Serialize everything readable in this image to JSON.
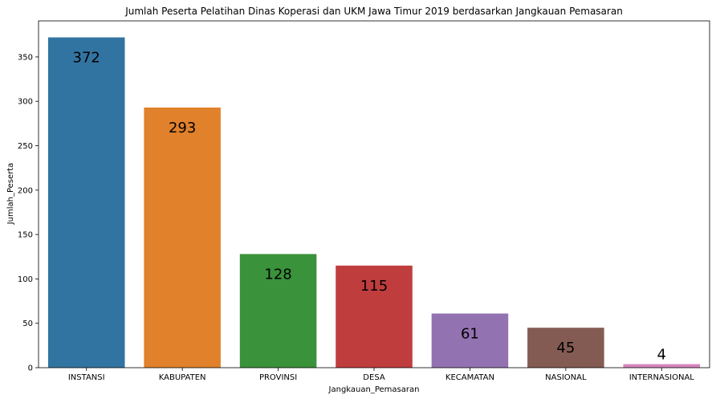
{
  "chart_data": {
    "type": "bar",
    "title": "Jumlah Peserta Pelatihan Dinas Koperasi dan UKM Jawa Timur 2019 berdasarkan Jangkauan Pemasaran",
    "xlabel": "Jangkauan_Pemasaran",
    "ylabel": "Jumlah_Peserta",
    "categories": [
      "INSTANSI",
      "KABUPATEN",
      "PROVINSI",
      "DESA",
      "KECAMATAN",
      "NASIONAL",
      "INTERNASIONAL"
    ],
    "values": [
      372,
      293,
      128,
      115,
      61,
      45,
      4
    ],
    "data_labels": [
      "372",
      "293",
      "128",
      "115",
      "61",
      "45",
      "4"
    ],
    "colors": [
      "#3274a1",
      "#e1812c",
      "#3a923a",
      "#c03d3e",
      "#9372b2",
      "#845b53",
      "#d684bd"
    ],
    "ylim": [
      0,
      390.6
    ],
    "yticks": [
      0,
      50,
      100,
      150,
      200,
      250,
      300,
      350
    ],
    "ytick_labels": [
      "0",
      "50",
      "100",
      "150",
      "200",
      "250",
      "300",
      "350"
    ],
    "grid": false,
    "legend": "none"
  }
}
